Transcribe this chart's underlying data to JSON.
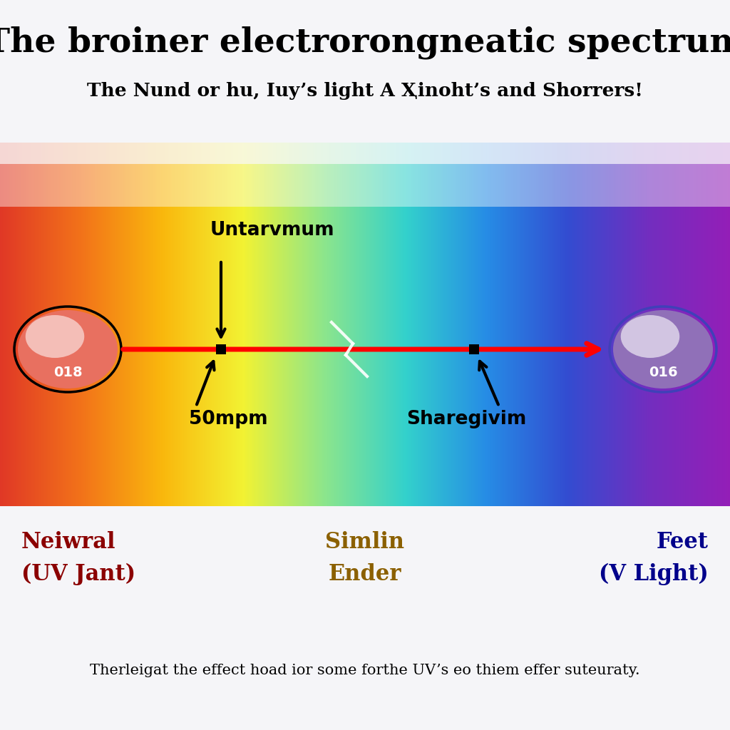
{
  "title": "The broiner electrorongneatic spectrum",
  "subtitle": "The Nund or hu, Iuy’s light A Ҳinoht’s and Shorrers!",
  "left_label_line1": "Neiwral",
  "left_label_line2": "(UV Jant)",
  "center_label_line1": "Simlin",
  "center_label_line2": "Ender",
  "right_label_line1": "Feet",
  "right_label_line2": "(V Light)",
  "footnote": "Therleigat the effect hoad ior some forthe UV’s eo thiem effer suteuraty.",
  "annotation_top": "Untarvmum",
  "annotation_bottom_left": "50mpm",
  "annotation_bottom_right": "Sharegivim",
  "left_circle_label": "018",
  "right_circle_label": "016",
  "bg_color": "#f5f5f8",
  "left_label_color": "#8b0000",
  "center_label_color": "#8b6000",
  "right_label_color": "#00008b"
}
